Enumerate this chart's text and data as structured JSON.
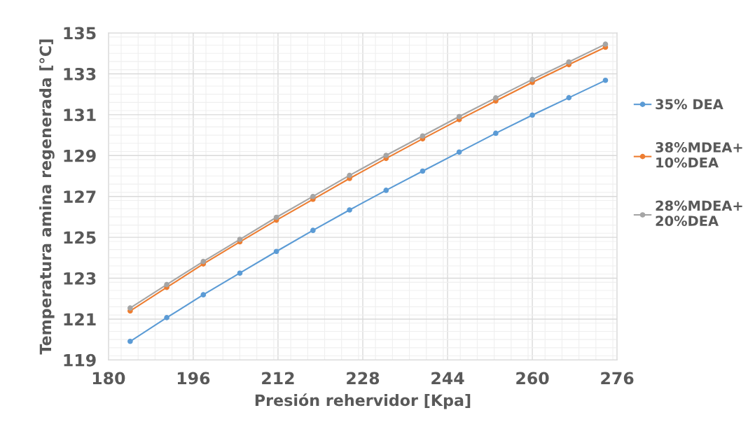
{
  "chart_data": {
    "type": "line",
    "xlabel": "Presión rehervidor [Kpa]",
    "ylabel": "Temperatura amina regenerada [°C]",
    "x": [
      184.1,
      191.0,
      197.9,
      204.8,
      211.7,
      218.6,
      225.5,
      232.4,
      239.3,
      246.2,
      253.1,
      260.0,
      266.9,
      273.8
    ],
    "series": [
      {
        "name": "35% DEA",
        "color": "#5b9bd5",
        "values": [
          119.91,
          121.07,
          122.19,
          123.25,
          124.31,
          125.34,
          126.34,
          127.3,
          128.24,
          129.17,
          130.09,
          130.98,
          131.83,
          132.68
        ]
      },
      {
        "name": "38%MDEA+\n10%DEA",
        "color": "#ed7d31",
        "values": [
          121.4,
          122.55,
          123.7,
          124.78,
          125.84,
          126.86,
          127.88,
          128.86,
          129.82,
          130.76,
          131.67,
          132.58,
          133.45,
          134.3
        ]
      },
      {
        "name": "28%MDEA+\n20%DEA",
        "color": "#a5a5a5",
        "values": [
          121.54,
          122.69,
          123.82,
          124.9,
          125.98,
          127.0,
          128.03,
          129.01,
          129.96,
          130.91,
          131.82,
          132.72,
          133.58,
          134.45
        ]
      }
    ],
    "xlim": [
      180,
      276
    ],
    "xticks": [
      180,
      196,
      212,
      228,
      244,
      260,
      276
    ],
    "ylim": [
      119,
      135
    ],
    "yticks": [
      119,
      121,
      123,
      125,
      127,
      129,
      131,
      133,
      135
    ],
    "grid": true,
    "legend": "right",
    "marker": "circle",
    "line_style": "solid"
  }
}
